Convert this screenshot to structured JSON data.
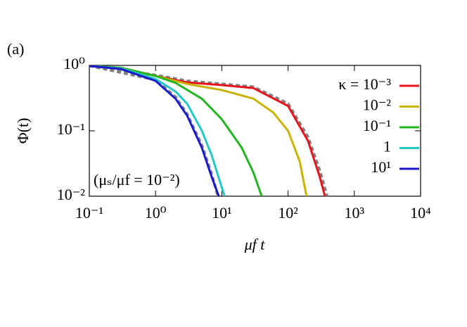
{
  "chart_data": {
    "type": "line",
    "panel_label": "(a)",
    "x_label": "μf t",
    "y_label": "Φ(t)",
    "annotation": "(μₛ/μf = 10⁻²)",
    "log_x": true,
    "log_y": true,
    "legend": "top-right",
    "xlim": [
      0.1,
      10000
    ],
    "ylim": [
      0.01,
      1
    ],
    "xticks": [
      {
        "value": 0.1,
        "label": "10⁻¹"
      },
      {
        "value": 1,
        "label": "10⁰"
      },
      {
        "value": 10,
        "label": "10¹"
      },
      {
        "value": 100,
        "label": "10²"
      },
      {
        "value": 1000,
        "label": "10³"
      },
      {
        "value": 10000,
        "label": "10⁴"
      }
    ],
    "yticks": [
      {
        "value": 0.01,
        "label": "10⁻²"
      },
      {
        "value": 0.1,
        "label": "10⁻¹"
      },
      {
        "value": 1,
        "label": "10⁰"
      }
    ],
    "series": [
      {
        "name": "κ = 10⁻³",
        "color": "#e8141c",
        "x": [
          0.1,
          0.3,
          1,
          3,
          10,
          30,
          100,
          200,
          300,
          360
        ],
        "values": [
          0.98,
          0.92,
          0.69,
          0.55,
          0.5,
          0.45,
          0.24,
          0.07,
          0.02,
          0.01
        ]
      },
      {
        "name": "10⁻²",
        "color": "#c8b400",
        "x": [
          0.1,
          0.3,
          1,
          3,
          10,
          30,
          60,
          100,
          150,
          190
        ],
        "values": [
          0.98,
          0.92,
          0.69,
          0.52,
          0.42,
          0.31,
          0.19,
          0.1,
          0.034,
          0.01
        ]
      },
      {
        "name": "10⁻¹",
        "color": "#22b422",
        "x": [
          0.1,
          0.3,
          1,
          2,
          5,
          10,
          20,
          30,
          40
        ],
        "values": [
          0.98,
          0.92,
          0.69,
          0.54,
          0.31,
          0.15,
          0.055,
          0.023,
          0.01
        ]
      },
      {
        "name": "1",
        "color": "#22c8c8",
        "x": [
          0.1,
          0.3,
          1,
          2,
          3,
          5,
          7,
          11
        ],
        "values": [
          0.98,
          0.9,
          0.62,
          0.4,
          0.26,
          0.1,
          0.043,
          0.01
        ]
      },
      {
        "name": "10¹",
        "color": "#1a1acc",
        "x": [
          0.1,
          0.3,
          1,
          2,
          3,
          5,
          7,
          9
        ],
        "values": [
          0.98,
          0.88,
          0.58,
          0.31,
          0.17,
          0.055,
          0.02,
          0.01
        ]
      },
      {
        "color": "#808080",
        "dashed": true,
        "x": [
          0.1,
          1,
          3,
          10,
          30,
          100,
          200,
          300,
          400
        ],
        "values": [
          0.99,
          0.71,
          0.58,
          0.52,
          0.47,
          0.26,
          0.08,
          0.025,
          0.009
        ]
      },
      {
        "color": "#808080",
        "dashed": true,
        "x": [
          0.1,
          1,
          2,
          3,
          5,
          7,
          9
        ],
        "values": [
          0.99,
          0.6,
          0.33,
          0.18,
          0.06,
          0.022,
          0.009
        ]
      }
    ]
  }
}
